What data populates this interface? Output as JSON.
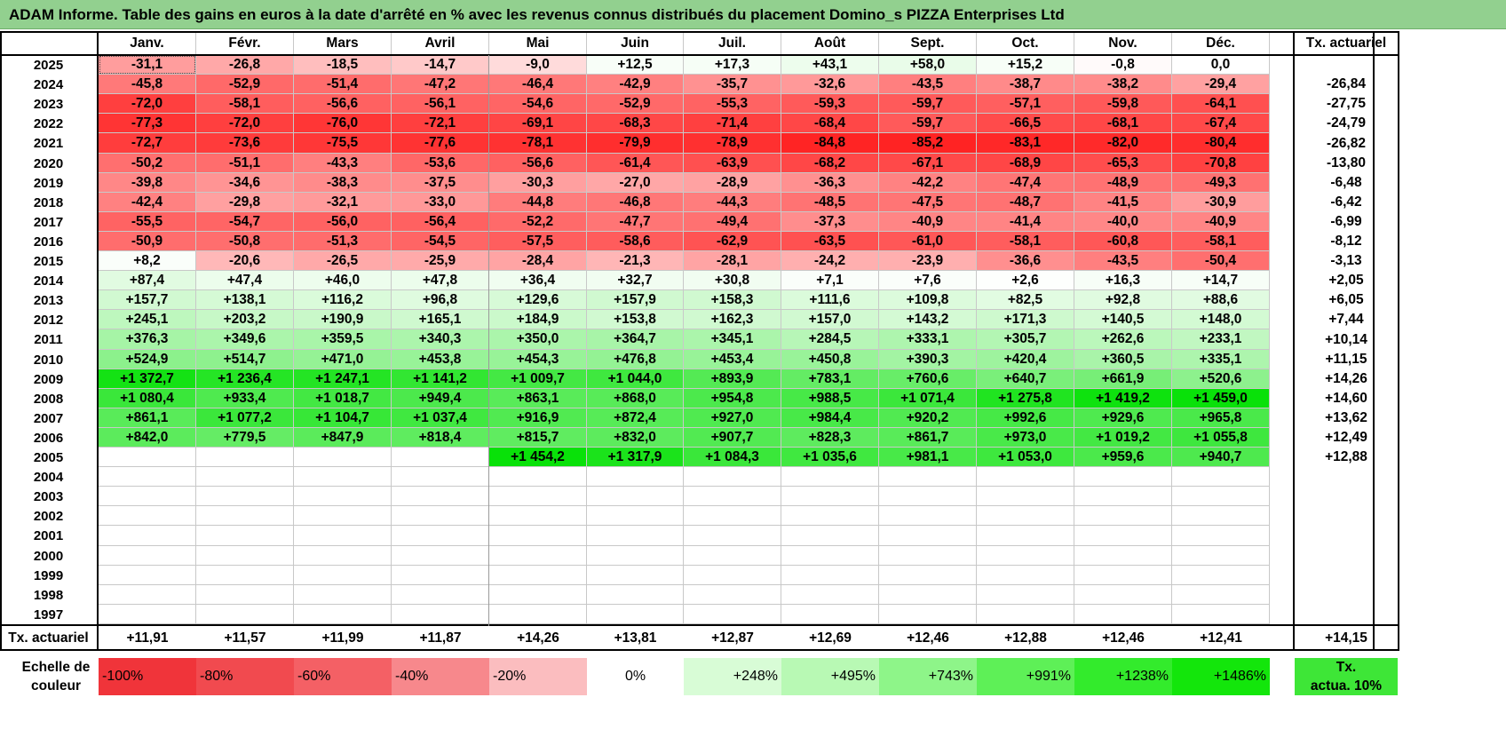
{
  "title": "ADAM Informe. Table des gains en euros à la date d'arrêté en % avec les revenus connus distribués du placement Domino_s PIZZA Enterprises Ltd",
  "months": [
    "Janv.",
    "Févr.",
    "Mars",
    "Avril",
    "Mai",
    "Juin",
    "Juil.",
    "Août",
    "Sept.",
    "Oct.",
    "Nov.",
    "Déc."
  ],
  "actuarial_header": "Tx. actuariel",
  "rows": [
    {
      "year": "2025",
      "cells": [
        "-31,1",
        "-26,8",
        "-18,5",
        "-14,7",
        "-9,0",
        "+12,5",
        "+17,3",
        "+43,1",
        "+58,0",
        "+15,2",
        "-0,8",
        "0,0"
      ],
      "rate": ""
    },
    {
      "year": "2024",
      "cells": [
        "-45,8",
        "-52,9",
        "-51,4",
        "-47,2",
        "-46,4",
        "-42,9",
        "-35,7",
        "-32,6",
        "-43,5",
        "-38,7",
        "-38,2",
        "-29,4"
      ],
      "rate": "-26,84"
    },
    {
      "year": "2023",
      "cells": [
        "-72,0",
        "-58,1",
        "-56,6",
        "-56,1",
        "-54,6",
        "-52,9",
        "-55,3",
        "-59,3",
        "-59,7",
        "-57,1",
        "-59,8",
        "-64,1"
      ],
      "rate": "-27,75"
    },
    {
      "year": "2022",
      "cells": [
        "-77,3",
        "-72,0",
        "-76,0",
        "-72,1",
        "-69,1",
        "-68,3",
        "-71,4",
        "-68,4",
        "-59,7",
        "-66,5",
        "-68,1",
        "-67,4"
      ],
      "rate": "-24,79"
    },
    {
      "year": "2021",
      "cells": [
        "-72,7",
        "-73,6",
        "-75,5",
        "-77,6",
        "-78,1",
        "-79,9",
        "-78,9",
        "-84,8",
        "-85,2",
        "-83,1",
        "-82,0",
        "-80,4"
      ],
      "rate": "-26,82"
    },
    {
      "year": "2020",
      "cells": [
        "-50,2",
        "-51,1",
        "-43,3",
        "-53,6",
        "-56,6",
        "-61,4",
        "-63,9",
        "-68,2",
        "-67,1",
        "-68,9",
        "-65,3",
        "-70,8"
      ],
      "rate": "-13,80"
    },
    {
      "year": "2019",
      "cells": [
        "-39,8",
        "-34,6",
        "-38,3",
        "-37,5",
        "-30,3",
        "-27,0",
        "-28,9",
        "-36,3",
        "-42,2",
        "-47,4",
        "-48,9",
        "-49,3"
      ],
      "rate": "-6,48"
    },
    {
      "year": "2018",
      "cells": [
        "-42,4",
        "-29,8",
        "-32,1",
        "-33,0",
        "-44,8",
        "-46,8",
        "-44,3",
        "-48,5",
        "-47,5",
        "-48,7",
        "-41,5",
        "-30,9"
      ],
      "rate": "-6,42"
    },
    {
      "year": "2017",
      "cells": [
        "-55,5",
        "-54,7",
        "-56,0",
        "-56,4",
        "-52,2",
        "-47,7",
        "-49,4",
        "-37,3",
        "-40,9",
        "-41,4",
        "-40,0",
        "-40,9"
      ],
      "rate": "-6,99"
    },
    {
      "year": "2016",
      "cells": [
        "-50,9",
        "-50,8",
        "-51,3",
        "-54,5",
        "-57,5",
        "-58,6",
        "-62,9",
        "-63,5",
        "-61,0",
        "-58,1",
        "-60,8",
        "-58,1"
      ],
      "rate": "-8,12"
    },
    {
      "year": "2015",
      "cells": [
        "+8,2",
        "-20,6",
        "-26,5",
        "-25,9",
        "-28,4",
        "-21,3",
        "-28,1",
        "-24,2",
        "-23,9",
        "-36,6",
        "-43,5",
        "-50,4"
      ],
      "rate": "-3,13"
    },
    {
      "year": "2014",
      "cells": [
        "+87,4",
        "+47,4",
        "+46,0",
        "+47,8",
        "+36,4",
        "+32,7",
        "+30,8",
        "+7,1",
        "+7,6",
        "+2,6",
        "+16,3",
        "+14,7"
      ],
      "rate": "+2,05"
    },
    {
      "year": "2013",
      "cells": [
        "+157,7",
        "+138,1",
        "+116,2",
        "+96,8",
        "+129,6",
        "+157,9",
        "+158,3",
        "+111,6",
        "+109,8",
        "+82,5",
        "+92,8",
        "+88,6"
      ],
      "rate": "+6,05"
    },
    {
      "year": "2012",
      "cells": [
        "+245,1",
        "+203,2",
        "+190,9",
        "+165,1",
        "+184,9",
        "+153,8",
        "+162,3",
        "+157,0",
        "+143,2",
        "+171,3",
        "+140,5",
        "+148,0"
      ],
      "rate": "+7,44"
    },
    {
      "year": "2011",
      "cells": [
        "+376,3",
        "+349,6",
        "+359,5",
        "+340,3",
        "+350,0",
        "+364,7",
        "+345,1",
        "+284,5",
        "+333,1",
        "+305,7",
        "+262,6",
        "+233,1"
      ],
      "rate": "+10,14"
    },
    {
      "year": "2010",
      "cells": [
        "+524,9",
        "+514,7",
        "+471,0",
        "+453,8",
        "+454,3",
        "+476,8",
        "+453,4",
        "+450,8",
        "+390,3",
        "+420,4",
        "+360,5",
        "+335,1"
      ],
      "rate": "+11,15"
    },
    {
      "year": "2009",
      "cells": [
        "+1 372,7",
        "+1 236,4",
        "+1 247,1",
        "+1 141,2",
        "+1 009,7",
        "+1 044,0",
        "+893,9",
        "+783,1",
        "+760,6",
        "+640,7",
        "+661,9",
        "+520,6"
      ],
      "rate": "+14,26"
    },
    {
      "year": "2008",
      "cells": [
        "+1 080,4",
        "+933,4",
        "+1 018,7",
        "+949,4",
        "+863,1",
        "+868,0",
        "+954,8",
        "+988,5",
        "+1 071,4",
        "+1 275,8",
        "+1 419,2",
        "+1 459,0"
      ],
      "rate": "+14,60"
    },
    {
      "year": "2007",
      "cells": [
        "+861,1",
        "+1 077,2",
        "+1 104,7",
        "+1 037,4",
        "+916,9",
        "+872,4",
        "+927,0",
        "+984,4",
        "+920,2",
        "+992,6",
        "+929,6",
        "+965,8"
      ],
      "rate": "+13,62"
    },
    {
      "year": "2006",
      "cells": [
        "+842,0",
        "+779,5",
        "+847,9",
        "+818,4",
        "+815,7",
        "+832,0",
        "+907,7",
        "+828,3",
        "+861,7",
        "+973,0",
        "+1 019,2",
        "+1 055,8"
      ],
      "rate": "+12,49"
    },
    {
      "year": "2005",
      "cells": [
        "",
        "",
        "",
        "",
        "+1 454,2",
        "+1 317,9",
        "+1 084,3",
        "+1 035,6",
        "+981,1",
        "+1 053,0",
        "+959,6",
        "+940,7"
      ],
      "rate": "+12,88"
    },
    {
      "year": "2004",
      "cells": [
        "",
        "",
        "",
        "",
        "",
        "",
        "",
        "",
        "",
        "",
        "",
        ""
      ],
      "rate": ""
    },
    {
      "year": "2003",
      "cells": [
        "",
        "",
        "",
        "",
        "",
        "",
        "",
        "",
        "",
        "",
        "",
        ""
      ],
      "rate": ""
    },
    {
      "year": "2002",
      "cells": [
        "",
        "",
        "",
        "",
        "",
        "",
        "",
        "",
        "",
        "",
        "",
        ""
      ],
      "rate": ""
    },
    {
      "year": "2001",
      "cells": [
        "",
        "",
        "",
        "",
        "",
        "",
        "",
        "",
        "",
        "",
        "",
        ""
      ],
      "rate": ""
    },
    {
      "year": "2000",
      "cells": [
        "",
        "",
        "",
        "",
        "",
        "",
        "",
        "",
        "",
        "",
        "",
        ""
      ],
      "rate": ""
    },
    {
      "year": "1999",
      "cells": [
        "",
        "",
        "",
        "",
        "",
        "",
        "",
        "",
        "",
        "",
        "",
        ""
      ],
      "rate": ""
    },
    {
      "year": "1998",
      "cells": [
        "",
        "",
        "",
        "",
        "",
        "",
        "",
        "",
        "",
        "",
        "",
        ""
      ],
      "rate": ""
    },
    {
      "year": "1997",
      "cells": [
        "",
        "",
        "",
        "",
        "",
        "",
        "",
        "",
        "",
        "",
        "",
        ""
      ],
      "rate": ""
    }
  ],
  "footer": {
    "label": "Tx. actuariel",
    "cells": [
      "+11,91",
      "+11,57",
      "+11,99",
      "+11,87",
      "+14,26",
      "+13,81",
      "+12,87",
      "+12,69",
      "+12,46",
      "+12,88",
      "+12,46",
      "+12,41"
    ],
    "rate": "+14,15"
  },
  "legend": {
    "label_line1": "Echelle de",
    "label_line2": "couleur",
    "items": [
      {
        "text": "-100%",
        "color": "#f0343a"
      },
      {
        "text": "-80%",
        "color": "#f14a4f"
      },
      {
        "text": "-60%",
        "color": "#f46065"
      },
      {
        "text": "-40%",
        "color": "#f7888c"
      },
      {
        "text": "-20%",
        "color": "#fbbdbf"
      },
      {
        "text": "0%",
        "color": "#ffffff"
      },
      {
        "text": "+248%",
        "color": "#d8fcd6"
      },
      {
        "text": "+495%",
        "color": "#b8f9b4"
      },
      {
        "text": "+743%",
        "color": "#8ef589"
      },
      {
        "text": "+991%",
        "color": "#5ef057"
      },
      {
        "text": "+1238%",
        "color": "#33eb2c"
      },
      {
        "text": "+1486%",
        "color": "#13e60b"
      }
    ],
    "rate_line1": "Tx.",
    "rate_line2": "actua. 10%",
    "rate_color": "#3ee637"
  },
  "colors": {
    "title_bg": "#92d08f",
    "negative_max": "#ff0000",
    "positive_max": "#00e000",
    "neutral": "#ffffff"
  }
}
